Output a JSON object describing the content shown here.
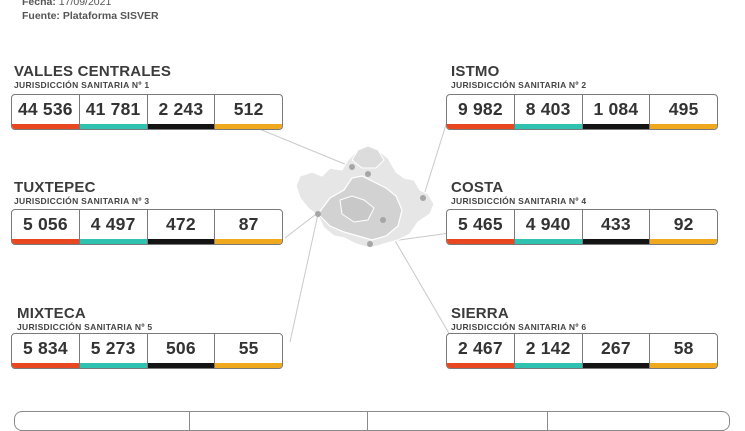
{
  "header": {
    "fecha_label": "Fecha:",
    "fecha_value": "17/09/2021",
    "fuente_label": "Fuente:",
    "fuente_value": "Plataforma SISVER"
  },
  "colors": {
    "bar1": "#e8471f",
    "bar2": "#2fc2b0",
    "bar3": "#141414",
    "bar4": "#f0a81c"
  },
  "regions": [
    {
      "name": "VALLES CENTRALES",
      "jurisdiction": "JURISDICCIÓN SANITARIA Nº 1",
      "values": [
        "44 536",
        "41 781",
        "2 243",
        "512"
      ]
    },
    {
      "name": "ISTMO",
      "jurisdiction": "JURISDICCIÓN SANITARIA Nº 2",
      "values": [
        "9 982",
        "8 403",
        "1 084",
        "495"
      ]
    },
    {
      "name": "TUXTEPEC",
      "jurisdiction": "JURISDICCIÓN SANITARIA Nº 3",
      "values": [
        "5 056",
        "4 497",
        "472",
        "87"
      ]
    },
    {
      "name": "COSTA",
      "jurisdiction": "JURISDICCIÓN SANITARIA Nº 4",
      "values": [
        "5 465",
        "4 940",
        "433",
        "92"
      ]
    },
    {
      "name": "MIXTECA",
      "jurisdiction": "JURISDICCIÓN SANITARIA Nº 5",
      "values": [
        "5 834",
        "5 273",
        "506",
        "55"
      ]
    },
    {
      "name": "SIERRA",
      "jurisdiction": "JURISDICCIÓN SANITARIA Nº 6",
      "values": [
        "2 467",
        "2 142",
        "267",
        "58"
      ]
    }
  ],
  "map": {
    "icon": "oaxaca-map"
  }
}
